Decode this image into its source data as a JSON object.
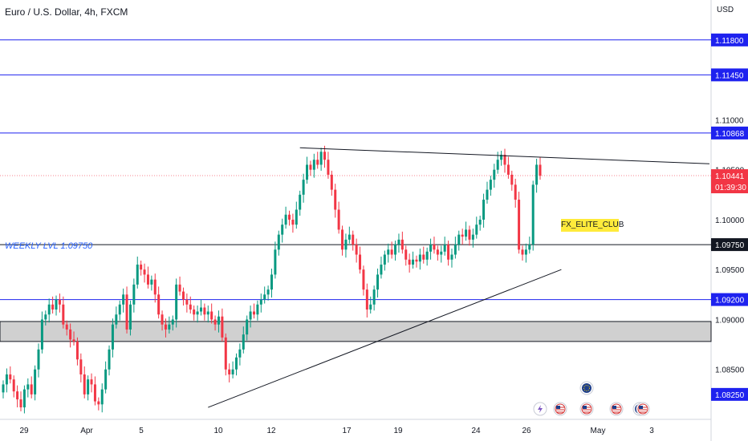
{
  "header": {
    "title": "Euro / U.S. Dollar, 4h, FXCM",
    "currency": "USD"
  },
  "annotations": {
    "weekly_level": "WEEKLY LVL 1.09750",
    "club_label": "FX_ELITE_CLUB"
  },
  "chart_data": {
    "type": "candlestick",
    "ylim": [
      1.08,
      1.122
    ],
    "y_ticks": [
      "1.11800",
      "1.11450",
      "1.11000",
      "1.10868",
      "1.10500",
      "1.10441",
      "1.10000",
      "1.09750",
      "1.09500",
      "1.09200",
      "1.09000",
      "1.08500",
      "1.08250"
    ],
    "x_ticks": [
      "29",
      "Apr",
      "5",
      "10",
      "12",
      "17",
      "19",
      "24",
      "26",
      "May",
      "3"
    ],
    "price_badges": [
      {
        "value": "1.11800",
        "color": "#1e22ef"
      },
      {
        "value": "1.11450",
        "color": "#1e22ef"
      },
      {
        "value": "1.10868",
        "color": "#1e22ef"
      },
      {
        "value": "1.09750",
        "color": "#131722"
      },
      {
        "value": "1.09200",
        "color": "#1e22ef"
      },
      {
        "value": "1.08250",
        "color": "#1e22ef"
      }
    ],
    "current_price": {
      "value": "1.10441",
      "countdown": "01:39:30",
      "color": "#f23645"
    },
    "horizontal_levels": [
      {
        "price": 1.118,
        "color": "#1e22ef"
      },
      {
        "price": 1.1145,
        "color": "#1e22ef"
      },
      {
        "price": 1.10868,
        "color": "#1e22ef"
      },
      {
        "price": 1.0975,
        "color": "#131722"
      },
      {
        "price": 1.092,
        "color": "#1e22ef"
      }
    ],
    "zone": {
      "from": 1.0878,
      "to": 1.0898
    },
    "closes": [
      1.0835,
      1.0845,
      1.084,
      1.0828,
      1.082,
      1.0812,
      1.083,
      1.0835,
      1.0825,
      1.085,
      1.087,
      1.09,
      1.0905,
      1.0915,
      1.091,
      1.092,
      1.0915,
      1.0895,
      1.089,
      1.088,
      1.0878,
      1.086,
      1.0845,
      1.0825,
      1.084,
      1.0835,
      1.0818,
      1.0815,
      1.083,
      1.085,
      1.087,
      1.0895,
      1.0905,
      1.0915,
      1.0925,
      1.089,
      1.0915,
      1.0935,
      1.0955,
      1.095,
      1.0945,
      1.0935,
      1.094,
      1.0925,
      1.0905,
      1.0895,
      1.089,
      1.0895,
      1.09,
      1.0935,
      1.0928,
      1.092,
      1.0915,
      1.091,
      1.0905,
      1.0908,
      1.0912,
      1.0905,
      1.0908,
      1.09,
      1.0895,
      1.0903,
      1.0882,
      1.085,
      1.0845,
      1.085,
      1.0862,
      1.087,
      1.0885,
      1.09,
      1.0908,
      1.0905,
      1.0915,
      1.092,
      1.0925,
      1.093,
      1.0945,
      1.097,
      1.0985,
      1.0995,
      1.1005,
      1.1,
      1.0995,
      1.101,
      1.1025,
      1.104,
      1.1055,
      1.105,
      1.106,
      1.1055,
      1.1068,
      1.106,
      1.1045,
      1.103,
      1.101,
      1.099,
      1.097,
      1.098,
      1.0985,
      1.0975,
      1.0965,
      1.095,
      1.093,
      1.091,
      1.0915,
      1.093,
      1.0945,
      1.0955,
      1.0965,
      1.097,
      1.0965,
      1.0975,
      1.098,
      1.097,
      1.096,
      1.0955,
      1.096,
      1.0958,
      1.0965,
      1.096,
      1.0968,
      1.0975,
      1.097,
      1.0965,
      1.0968,
      1.0975,
      1.096,
      1.0965,
      1.0975,
      1.0985,
      1.0983,
      1.099,
      1.098,
      1.0985,
      1.0995,
      1.1,
      1.102,
      1.103,
      1.104,
      1.105,
      1.106,
      1.1065,
      1.1055,
      1.1045,
      1.1035,
      1.102,
      1.097,
      1.0965,
      1.097,
      1.0975,
      1.1035,
      1.1055,
      1.1044
    ]
  },
  "event_icons": [
    "lightning-icon",
    "us-flag-icon",
    "eu-flag-icon",
    "us-flag-icon",
    "us-flag-icon",
    "eu-flag-icon",
    "us-flag-icon"
  ]
}
